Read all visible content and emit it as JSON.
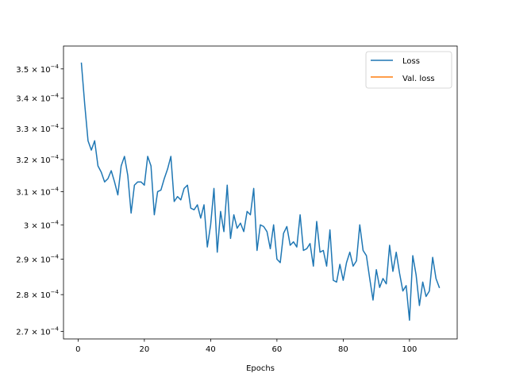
{
  "chart_data": {
    "type": "line",
    "title": "",
    "xlabel": "Epochs",
    "ylabel": "",
    "xlim": [
      -4.4,
      114.4
    ],
    "ylim": [
      0.000268,
      0.000358
    ],
    "yscale": "log",
    "grid": false,
    "legend": "top-right",
    "x_ticks": [
      0,
      20,
      40,
      60,
      80,
      100
    ],
    "x_tick_labels": [
      "0",
      "20",
      "40",
      "60",
      "80",
      "100"
    ],
    "y_ticks": [
      {
        "value": 0.00027,
        "mantissa": "2.7",
        "exp": "−4"
      },
      {
        "value": 0.00028,
        "mantissa": "2.8",
        "exp": "−4"
      },
      {
        "value": 0.00029,
        "mantissa": "2.9",
        "exp": "−4"
      },
      {
        "value": 0.0003,
        "mantissa": "3",
        "exp": "−4"
      },
      {
        "value": 0.00031,
        "mantissa": "3.1",
        "exp": "−4"
      },
      {
        "value": 0.00032,
        "mantissa": "3.2",
        "exp": "−4"
      },
      {
        "value": 0.00033,
        "mantissa": "3.3",
        "exp": "−4"
      },
      {
        "value": 0.00034,
        "mantissa": "3.4",
        "exp": "−4"
      },
      {
        "value": 0.00035,
        "mantissa": "3.5",
        "exp": "−4"
      }
    ],
    "series": [
      {
        "name": "Loss",
        "color": "#1f77b4",
        "x_start": 1,
        "values": [
          0.000352,
          0.000338,
          0.000326,
          0.000323,
          0.000326,
          0.000318,
          0.000316,
          0.000313,
          0.000314,
          0.0003165,
          0.000313,
          0.000309,
          0.000318,
          0.000321,
          0.000315,
          0.0003035,
          0.000312,
          0.000313,
          0.000313,
          0.000312,
          0.000321,
          0.000318,
          0.000303,
          0.00031,
          0.0003105,
          0.000314,
          0.000317,
          0.000321,
          0.000307,
          0.0003085,
          0.0003075,
          0.000311,
          0.000312,
          0.000305,
          0.0003045,
          0.000306,
          0.000302,
          0.000306,
          0.0002935,
          0.0003,
          0.000311,
          0.000292,
          0.000304,
          0.000298,
          0.000312,
          0.000296,
          0.000303,
          0.000299,
          0.0003005,
          0.000298,
          0.000304,
          0.000303,
          0.000311,
          0.0002925,
          0.0003,
          0.0002995,
          0.000298,
          0.000293,
          0.0003,
          0.00029,
          0.000289,
          0.0002975,
          0.0002995,
          0.000294,
          0.000295,
          0.0002935,
          0.000303,
          0.0002925,
          0.000293,
          0.0002945,
          0.000288,
          0.000301,
          0.000292,
          0.0002925,
          0.000288,
          0.0002985,
          0.000284,
          0.0002835,
          0.0002885,
          0.000284,
          0.000289,
          0.000292,
          0.000288,
          0.0002895,
          0.0003,
          0.0002925,
          0.000291,
          0.0002845,
          0.0002785,
          0.000287,
          0.000282,
          0.0002845,
          0.000283,
          0.000294,
          0.0002865,
          0.000292,
          0.000286,
          0.000281,
          0.0002825,
          0.000273,
          0.000291,
          0.0002855,
          0.000277,
          0.0002835,
          0.0002795,
          0.000281,
          0.0002905,
          0.0002845,
          0.000282
        ]
      },
      {
        "name": "Val. loss",
        "color": "#ff7f0e",
        "x_start": 1,
        "values": []
      }
    ]
  }
}
